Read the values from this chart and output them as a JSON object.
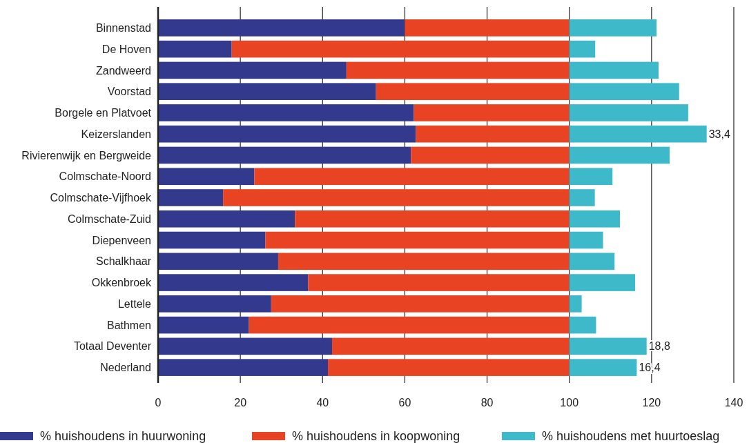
{
  "chart_data": {
    "type": "bar",
    "orientation": "horizontal",
    "stacked": true,
    "categories": [
      "Binnenstad",
      "De Hoven",
      "Zandweerd",
      "Voorstad",
      "Borgele en Platvoet",
      "Keizerslanden",
      "Rivierenwijk en Bergweide",
      "Colmschate-Noord",
      "Colmschate-Vijfhoek",
      "Colmschate-Zuid",
      "Diepenveen",
      "Schalkhaar",
      "Okkenbroek",
      "Lettele",
      "Bathmen",
      "Totaal Deventer",
      "Nederland"
    ],
    "series": [
      {
        "name": "% huishoudens in huurwoning",
        "color": "#333a8e",
        "values": [
          60.0,
          17.9,
          45.8,
          53.0,
          62.2,
          62.7,
          61.5,
          23.4,
          15.8,
          33.3,
          26.1,
          29.2,
          36.5,
          27.5,
          22.1,
          42.3,
          41.3
        ]
      },
      {
        "name": "% huishoudens in koopwoning",
        "color": "#e84424",
        "values": [
          40.0,
          82.1,
          54.2,
          47.0,
          37.8,
          37.3,
          38.5,
          76.6,
          84.2,
          66.7,
          73.9,
          70.8,
          63.5,
          72.5,
          77.9,
          57.7,
          58.7
        ]
      },
      {
        "name": "% huishoudens met huurtoeslag",
        "color": "#3db9c9",
        "values": [
          21.2,
          6.3,
          21.7,
          26.7,
          28.9,
          33.4,
          24.4,
          10.5,
          6.2,
          12.3,
          8.2,
          11.0,
          16.0,
          3.0,
          6.5,
          18.8,
          16.4
        ],
        "value_labels": [
          null,
          null,
          null,
          null,
          null,
          "33,4",
          null,
          null,
          null,
          null,
          null,
          null,
          null,
          null,
          null,
          "18,8",
          "16,4"
        ]
      }
    ],
    "xlim": [
      0,
      140
    ],
    "xticks": [
      0,
      20,
      40,
      60,
      80,
      100,
      120,
      140
    ],
    "grid": "x",
    "legend": "bottom"
  }
}
